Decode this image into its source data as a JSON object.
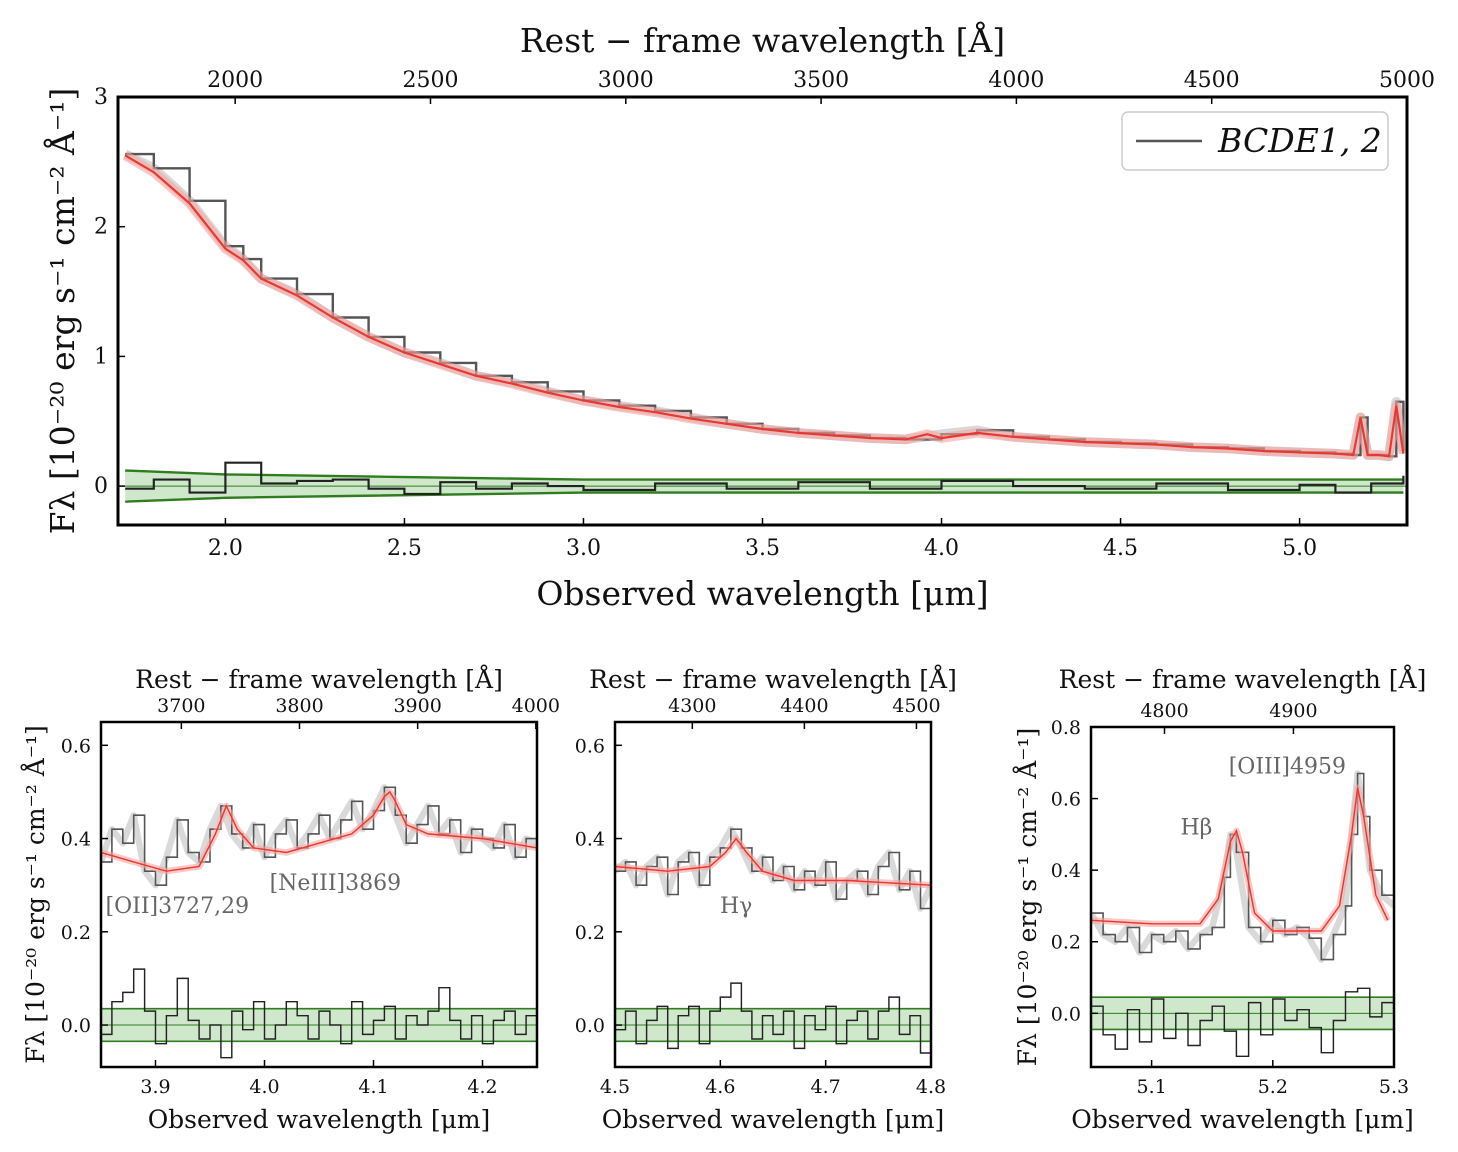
{
  "chart_data": [
    {
      "type": "line",
      "panel": "main",
      "title": "",
      "xlabel": "Observed wavelength [μm]",
      "ylabel": "Fλ [10⁻²⁰ erg s⁻¹ cm⁻² Å⁻¹]",
      "top_xlabel": "Rest − frame wavelength [Å]",
      "xlim": [
        1.7,
        5.3
      ],
      "ylim": [
        -0.3,
        3.0
      ],
      "xticks": [
        2.0,
        2.5,
        3.0,
        3.5,
        4.0,
        4.5,
        5.0
      ],
      "xtick_labels": [
        "2.0",
        "2.5",
        "3.0",
        "3.5",
        "4.0",
        "4.5",
        "5.0"
      ],
      "yticks": [
        0,
        1,
        2,
        3
      ],
      "ytick_labels": [
        "0",
        "1",
        "2",
        "3"
      ],
      "top_ticks": [
        2000,
        2500,
        3000,
        3500,
        4000,
        4500,
        5000
      ],
      "top_tick_labels": [
        "2000",
        "2500",
        "3000",
        "3500",
        "4000",
        "4500",
        "5000"
      ],
      "legend": {
        "label": "BCDE1, 2",
        "position": "top-right"
      },
      "series": [
        {
          "name": "spectrum",
          "x": [
            1.72,
            1.8,
            1.9,
            2.0,
            2.05,
            2.1,
            2.2,
            2.3,
            2.4,
            2.5,
            2.6,
            2.7,
            2.8,
            2.9,
            3.0,
            3.1,
            3.2,
            3.3,
            3.4,
            3.5,
            3.6,
            3.7,
            3.8,
            3.9,
            4.0,
            4.1,
            4.2,
            4.3,
            4.4,
            4.5,
            4.6,
            4.7,
            4.8,
            4.9,
            5.0,
            5.1,
            5.15,
            5.17,
            5.19,
            5.22,
            5.25,
            5.27,
            5.29
          ],
          "values": [
            2.56,
            2.45,
            2.2,
            1.85,
            1.75,
            1.6,
            1.48,
            1.3,
            1.15,
            1.03,
            0.95,
            0.85,
            0.8,
            0.73,
            0.66,
            0.62,
            0.58,
            0.53,
            0.48,
            0.44,
            0.41,
            0.39,
            0.37,
            0.36,
            0.4,
            0.43,
            0.38,
            0.36,
            0.34,
            0.33,
            0.32,
            0.3,
            0.29,
            0.27,
            0.26,
            0.25,
            0.24,
            0.53,
            0.24,
            0.24,
            0.23,
            0.65,
            0.27
          ]
        },
        {
          "name": "model",
          "x": [
            1.72,
            1.8,
            1.9,
            2.0,
            2.05,
            2.1,
            2.2,
            2.3,
            2.4,
            2.5,
            2.6,
            2.7,
            2.8,
            2.9,
            3.0,
            3.1,
            3.2,
            3.3,
            3.4,
            3.5,
            3.6,
            3.7,
            3.8,
            3.9,
            3.96,
            4.0,
            4.1,
            4.2,
            4.3,
            4.4,
            4.5,
            4.6,
            4.7,
            4.8,
            4.9,
            5.0,
            5.1,
            5.15,
            5.17,
            5.19,
            5.22,
            5.25,
            5.27,
            5.29
          ],
          "values": [
            2.55,
            2.42,
            2.18,
            1.83,
            1.74,
            1.6,
            1.47,
            1.3,
            1.15,
            1.03,
            0.94,
            0.85,
            0.79,
            0.72,
            0.66,
            0.61,
            0.57,
            0.52,
            0.48,
            0.44,
            0.41,
            0.39,
            0.37,
            0.36,
            0.4,
            0.37,
            0.41,
            0.38,
            0.36,
            0.34,
            0.33,
            0.32,
            0.3,
            0.29,
            0.27,
            0.26,
            0.25,
            0.24,
            0.53,
            0.24,
            0.24,
            0.23,
            0.62,
            0.25
          ]
        },
        {
          "name": "residual",
          "x": [
            1.72,
            1.8,
            1.9,
            2.0,
            2.1,
            2.2,
            2.3,
            2.4,
            2.5,
            2.6,
            2.7,
            2.8,
            2.9,
            3.0,
            3.2,
            3.4,
            3.6,
            3.8,
            4.0,
            4.2,
            4.4,
            4.6,
            4.8,
            5.0,
            5.1,
            5.2,
            5.29
          ],
          "values": [
            -0.02,
            0.05,
            -0.05,
            0.18,
            0.02,
            0.04,
            0.05,
            -0.02,
            -0.06,
            0.03,
            -0.02,
            0.02,
            0.0,
            -0.03,
            0.02,
            -0.02,
            0.03,
            -0.02,
            0.04,
            0.0,
            -0.02,
            0.02,
            -0.03,
            0.01,
            -0.05,
            0.02,
            0.08
          ]
        },
        {
          "name": "error band",
          "x": [
            1.72,
            2.0,
            3.0,
            4.0,
            5.29
          ],
          "upper": [
            0.12,
            0.09,
            0.05,
            0.05,
            0.05
          ],
          "lower": [
            -0.12,
            -0.09,
            -0.05,
            -0.05,
            -0.05
          ]
        }
      ]
    },
    {
      "type": "line",
      "panel": "bottom-left",
      "xlabel": "Observed wavelength [μm]",
      "ylabel": "Fλ [10⁻²⁰ erg s⁻¹ cm⁻² Å⁻¹]",
      "top_xlabel": "Rest − frame wavelength [Å]",
      "xlim": [
        3.85,
        4.25
      ],
      "ylim": [
        -0.09,
        0.65
      ],
      "xticks": [
        3.9,
        4.0,
        4.1,
        4.2
      ],
      "xtick_labels": [
        "3.9",
        "4.0",
        "4.1",
        "4.2"
      ],
      "yticks": [
        0.0,
        0.2,
        0.4,
        0.6
      ],
      "ytick_labels": [
        "0.0",
        "0.2",
        "0.4",
        "0.6"
      ],
      "top_ticks": [
        3700,
        3800,
        3900,
        4000
      ],
      "top_tick_labels": [
        "3700",
        "3800",
        "3900",
        "4000"
      ],
      "annotations": [
        {
          "text": "[OII]3727,29",
          "x": 3.92,
          "y": 0.24
        },
        {
          "text": "[NeIII]3869",
          "x": 4.065,
          "y": 0.29
        }
      ],
      "series": [
        {
          "name": "spectrum",
          "x": [
            3.85,
            3.86,
            3.87,
            3.88,
            3.89,
            3.9,
            3.91,
            3.92,
            3.93,
            3.94,
            3.95,
            3.96,
            3.97,
            3.98,
            3.99,
            4.0,
            4.01,
            4.02,
            4.03,
            4.04,
            4.05,
            4.06,
            4.07,
            4.08,
            4.09,
            4.1,
            4.11,
            4.12,
            4.13,
            4.14,
            4.15,
            4.16,
            4.17,
            4.18,
            4.19,
            4.2,
            4.21,
            4.22,
            4.23,
            4.24,
            4.25
          ],
          "values": [
            0.35,
            0.42,
            0.39,
            0.45,
            0.33,
            0.3,
            0.36,
            0.44,
            0.37,
            0.35,
            0.42,
            0.47,
            0.41,
            0.38,
            0.43,
            0.36,
            0.41,
            0.44,
            0.38,
            0.41,
            0.45,
            0.4,
            0.44,
            0.48,
            0.42,
            0.46,
            0.51,
            0.45,
            0.39,
            0.43,
            0.47,
            0.41,
            0.44,
            0.37,
            0.42,
            0.4,
            0.38,
            0.43,
            0.36,
            0.4,
            0.39
          ]
        },
        {
          "name": "model",
          "x": [
            3.85,
            3.88,
            3.91,
            3.94,
            3.955,
            3.965,
            3.975,
            3.99,
            4.02,
            4.05,
            4.08,
            4.1,
            4.11,
            4.115,
            4.12,
            4.13,
            4.15,
            4.2,
            4.25
          ],
          "values": [
            0.37,
            0.35,
            0.33,
            0.34,
            0.41,
            0.47,
            0.42,
            0.38,
            0.37,
            0.39,
            0.41,
            0.45,
            0.49,
            0.5,
            0.48,
            0.43,
            0.41,
            0.4,
            0.38
          ]
        },
        {
          "name": "residual",
          "x": [
            3.85,
            3.86,
            3.87,
            3.88,
            3.89,
            3.9,
            3.91,
            3.92,
            3.93,
            3.94,
            3.95,
            3.96,
            3.97,
            3.98,
            3.99,
            4.0,
            4.01,
            4.02,
            4.03,
            4.04,
            4.05,
            4.06,
            4.07,
            4.08,
            4.09,
            4.1,
            4.11,
            4.12,
            4.13,
            4.14,
            4.15,
            4.16,
            4.17,
            4.18,
            4.19,
            4.2,
            4.21,
            4.22,
            4.23,
            4.24,
            4.25
          ],
          "values": [
            -0.02,
            0.05,
            0.07,
            0.12,
            0.03,
            -0.04,
            0.02,
            0.1,
            0.01,
            -0.03,
            0.0,
            -0.07,
            0.03,
            -0.01,
            0.05,
            -0.03,
            0.0,
            0.05,
            0.02,
            -0.03,
            0.03,
            0.0,
            -0.04,
            0.05,
            -0.02,
            0.01,
            0.04,
            -0.03,
            0.02,
            0.0,
            0.03,
            0.08,
            0.01,
            -0.03,
            0.02,
            -0.04,
            0.01,
            0.03,
            -0.02,
            0.02,
            0.0
          ]
        },
        {
          "name": "error band",
          "x": [
            3.85,
            4.25
          ],
          "upper": [
            0.035,
            0.035
          ],
          "lower": [
            -0.035,
            -0.035
          ]
        }
      ]
    },
    {
      "type": "line",
      "panel": "bottom-middle",
      "xlabel": "Observed wavelength [μm]",
      "top_xlabel": "Rest − frame wavelength [Å]",
      "xlim": [
        4.5,
        4.8
      ],
      "ylim": [
        -0.09,
        0.65
      ],
      "xticks": [
        4.5,
        4.6,
        4.7,
        4.8
      ],
      "xtick_labels": [
        "4.5",
        "4.6",
        "4.7",
        "4.8"
      ],
      "yticks": [
        0.0,
        0.2,
        0.4,
        0.6
      ],
      "ytick_labels": [
        "0.0",
        "0.2",
        "0.4",
        "0.6"
      ],
      "top_ticks": [
        4300,
        4400,
        4500
      ],
      "top_tick_labels": [
        "4300",
        "4400",
        "4500"
      ],
      "annotations": [
        {
          "text": "Hγ",
          "x": 4.615,
          "y": 0.24
        }
      ],
      "series": [
        {
          "name": "spectrum",
          "x": [
            4.5,
            4.51,
            4.52,
            4.53,
            4.54,
            4.55,
            4.56,
            4.57,
            4.58,
            4.59,
            4.6,
            4.61,
            4.62,
            4.63,
            4.64,
            4.65,
            4.66,
            4.67,
            4.68,
            4.69,
            4.7,
            4.71,
            4.72,
            4.73,
            4.74,
            4.75,
            4.76,
            4.77,
            4.78,
            4.79,
            4.8
          ],
          "values": [
            0.33,
            0.35,
            0.3,
            0.34,
            0.36,
            0.28,
            0.35,
            0.37,
            0.3,
            0.36,
            0.38,
            0.42,
            0.38,
            0.33,
            0.36,
            0.31,
            0.34,
            0.29,
            0.33,
            0.3,
            0.35,
            0.27,
            0.31,
            0.33,
            0.28,
            0.34,
            0.37,
            0.29,
            0.33,
            0.25,
            0.3
          ]
        },
        {
          "name": "model",
          "x": [
            4.5,
            4.55,
            4.59,
            4.605,
            4.615,
            4.625,
            4.64,
            4.67,
            4.72,
            4.8
          ],
          "values": [
            0.34,
            0.33,
            0.34,
            0.37,
            0.4,
            0.37,
            0.33,
            0.31,
            0.31,
            0.3
          ]
        },
        {
          "name": "residual",
          "x": [
            4.5,
            4.51,
            4.52,
            4.53,
            4.54,
            4.55,
            4.56,
            4.57,
            4.58,
            4.59,
            4.6,
            4.61,
            4.62,
            4.63,
            4.64,
            4.65,
            4.66,
            4.67,
            4.68,
            4.69,
            4.7,
            4.71,
            4.72,
            4.73,
            4.74,
            4.75,
            4.76,
            4.77,
            4.78,
            4.79,
            4.8
          ],
          "values": [
            -0.01,
            0.03,
            -0.04,
            0.01,
            0.04,
            -0.05,
            0.02,
            0.04,
            -0.04,
            0.03,
            0.06,
            0.09,
            0.03,
            -0.03,
            0.02,
            -0.02,
            0.03,
            -0.05,
            0.02,
            -0.01,
            0.04,
            -0.04,
            0.01,
            0.03,
            -0.03,
            0.03,
            0.06,
            -0.02,
            0.02,
            -0.06,
            -0.01
          ]
        },
        {
          "name": "error band",
          "x": [
            4.5,
            4.8
          ],
          "upper": [
            0.035,
            0.035
          ],
          "lower": [
            -0.035,
            -0.035
          ]
        }
      ]
    },
    {
      "type": "line",
      "panel": "bottom-right",
      "xlabel": "Observed wavelength [μm]",
      "ylabel": "Fλ [10⁻²⁰ erg s⁻¹ cm⁻² Å⁻¹]",
      "top_xlabel": "Rest − frame wavelength [Å]",
      "xlim": [
        5.05,
        5.3
      ],
      "ylim": [
        -0.15,
        0.8
      ],
      "xticks": [
        5.1,
        5.2,
        5.3
      ],
      "xtick_labels": [
        "5.1",
        "5.2",
        "5.3"
      ],
      "yticks": [
        0.0,
        0.2,
        0.4,
        0.6,
        0.8
      ],
      "ytick_labels": [
        "0.0",
        "0.2",
        "0.4",
        "0.6",
        "0.8"
      ],
      "top_ticks": [
        4800,
        4900
      ],
      "top_tick_labels": [
        "4800",
        "4900"
      ],
      "annotations": [
        {
          "text": "Hβ",
          "x": 5.137,
          "y": 0.5
        },
        {
          "text": "[OIII]4959",
          "x": 5.212,
          "y": 0.67
        }
      ],
      "series": [
        {
          "name": "spectrum",
          "x": [
            5.05,
            5.06,
            5.07,
            5.08,
            5.09,
            5.1,
            5.11,
            5.12,
            5.13,
            5.14,
            5.15,
            5.16,
            5.165,
            5.17,
            5.18,
            5.19,
            5.2,
            5.21,
            5.22,
            5.23,
            5.24,
            5.25,
            5.26,
            5.265,
            5.27,
            5.275,
            5.28,
            5.29,
            5.3
          ],
          "values": [
            0.28,
            0.22,
            0.2,
            0.24,
            0.17,
            0.22,
            0.2,
            0.23,
            0.18,
            0.22,
            0.24,
            0.38,
            0.5,
            0.45,
            0.24,
            0.2,
            0.26,
            0.22,
            0.24,
            0.21,
            0.15,
            0.22,
            0.3,
            0.5,
            0.67,
            0.55,
            0.4,
            0.33,
            0.3
          ]
        },
        {
          "name": "model",
          "x": [
            5.05,
            5.1,
            5.14,
            5.155,
            5.165,
            5.17,
            5.175,
            5.185,
            5.2,
            5.24,
            5.255,
            5.265,
            5.27,
            5.275,
            5.285,
            5.295
          ],
          "values": [
            0.26,
            0.25,
            0.25,
            0.32,
            0.48,
            0.51,
            0.45,
            0.28,
            0.23,
            0.23,
            0.3,
            0.5,
            0.63,
            0.55,
            0.33,
            0.26
          ]
        },
        {
          "name": "residual",
          "x": [
            5.05,
            5.06,
            5.07,
            5.08,
            5.09,
            5.1,
            5.11,
            5.12,
            5.13,
            5.14,
            5.15,
            5.16,
            5.17,
            5.18,
            5.19,
            5.2,
            5.21,
            5.22,
            5.23,
            5.24,
            5.25,
            5.26,
            5.27,
            5.28,
            5.29,
            5.3
          ],
          "values": [
            0.02,
            -0.06,
            -0.1,
            0.01,
            -0.08,
            0.04,
            -0.07,
            0.0,
            -0.09,
            -0.02,
            0.02,
            -0.05,
            -0.12,
            0.03,
            -0.06,
            0.04,
            -0.02,
            0.01,
            -0.04,
            -0.11,
            -0.02,
            0.06,
            0.07,
            -0.01,
            0.03,
            0.1
          ]
        },
        {
          "name": "error band",
          "x": [
            5.05,
            5.3
          ],
          "upper": [
            0.045,
            0.045
          ],
          "lower": [
            -0.045,
            -0.045
          ]
        }
      ]
    }
  ]
}
